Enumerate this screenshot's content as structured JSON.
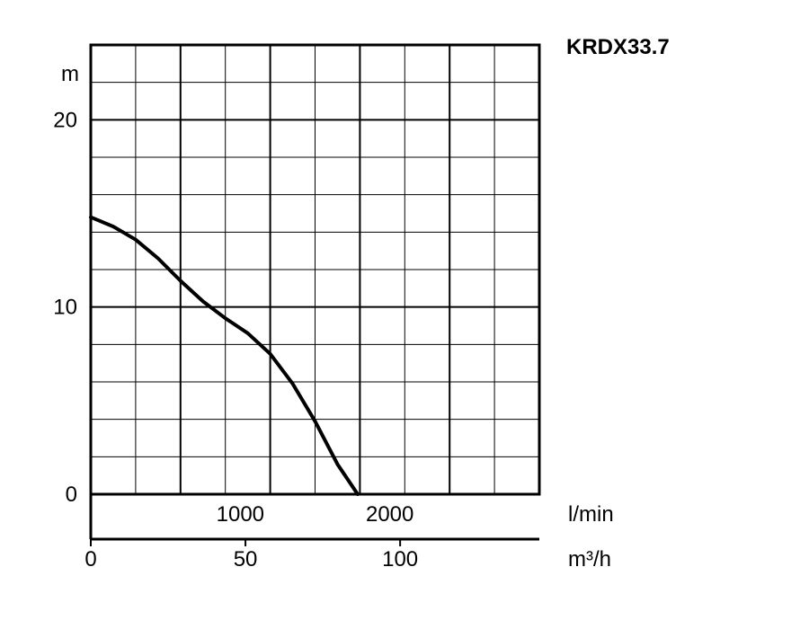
{
  "chart_data": {
    "type": "line",
    "title": "KRDX33.7",
    "ylabel": "m",
    "ylim": [
      0,
      24
    ],
    "grid": true,
    "legend": "none",
    "y_ticks": [
      {
        "value": 0,
        "label": "0"
      },
      {
        "value": 10,
        "label": "10"
      },
      {
        "value": 20,
        "label": "20"
      }
    ],
    "x_axis_lmin": {
      "label": "l/min",
      "range": [
        0,
        3000
      ],
      "ticks": [
        {
          "value": 1000,
          "label": "1000"
        },
        {
          "value": 2000,
          "label": "2000"
        }
      ]
    },
    "x_axis_m3h": {
      "label": "m³/h",
      "range": [
        0,
        145
      ],
      "ticks": [
        {
          "value": 0,
          "label": "0"
        },
        {
          "value": 50,
          "label": "50"
        },
        {
          "value": 100,
          "label": "100"
        }
      ]
    },
    "series": [
      {
        "x_lmin": [
          0,
          150,
          300,
          450,
          600,
          750,
          900,
          1050,
          1200,
          1350,
          1500,
          1650,
          1785
        ],
        "y_m": [
          14.8,
          14.3,
          13.6,
          12.6,
          11.4,
          10.3,
          9.4,
          8.6,
          7.5,
          5.9,
          3.9,
          1.6,
          0
        ]
      }
    ],
    "line_color": "#000000"
  }
}
